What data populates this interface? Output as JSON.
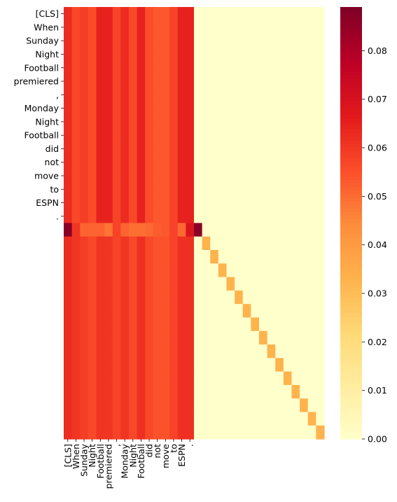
{
  "chart_data": {
    "type": "heatmap",
    "title": "",
    "xlabel": "",
    "ylabel": "",
    "row_tick_labels": [
      "[CLS]",
      "When",
      "Sunday",
      "Night",
      "Football",
      "premiered",
      ",",
      "Monday",
      "Night",
      "Football",
      "did",
      "not",
      "move",
      "to",
      "ESPN",
      "."
    ],
    "col_tick_labels": [
      "[CLS]",
      "When",
      "Sunday",
      "Night",
      "Football",
      "premiered",
      ",",
      "Monday",
      "Night",
      "Football",
      "did",
      "not",
      "move",
      "to",
      "ESPN",
      "."
    ],
    "n_rows": 32,
    "n_cols": 32,
    "colorbar": {
      "min": 0.0,
      "max": 0.089,
      "ticks": [
        0.0,
        0.01,
        0.02,
        0.03,
        0.04,
        0.05,
        0.06,
        0.07,
        0.08
      ],
      "tick_labels": [
        "0.00",
        "0.01",
        "0.02",
        "0.03",
        "0.04",
        "0.05",
        "0.06",
        "0.07",
        "0.08"
      ],
      "colormap": "YlOrRd",
      "stops": [
        "#ffffcc",
        "#ffeda0",
        "#fed976",
        "#feb24c",
        "#fd8d3c",
        "#fc4e2a",
        "#e31a1c",
        "#bd0026",
        "#800026"
      ]
    },
    "top_block_column_values": [
      0.063,
      0.057,
      0.059,
      0.056,
      0.065,
      0.065,
      0.058,
      0.063,
      0.057,
      0.065,
      0.056,
      0.054,
      0.054,
      0.058,
      0.065,
      0.065
    ],
    "separator_row_values": [
      0.087,
      0.061,
      0.052,
      0.052,
      0.052,
      0.049,
      0.058,
      0.052,
      0.05,
      0.05,
      0.051,
      0.053,
      0.054,
      0.058,
      0.051,
      0.069,
      0.087
    ],
    "bottom_block_column_values": [
      0.063,
      0.061,
      0.059,
      0.057,
      0.061,
      0.061,
      0.058,
      0.061,
      0.057,
      0.062,
      0.057,
      0.055,
      0.055,
      0.058,
      0.062,
      0.062
    ],
    "diagonal_value": 0.033,
    "background_value": 0.0
  }
}
